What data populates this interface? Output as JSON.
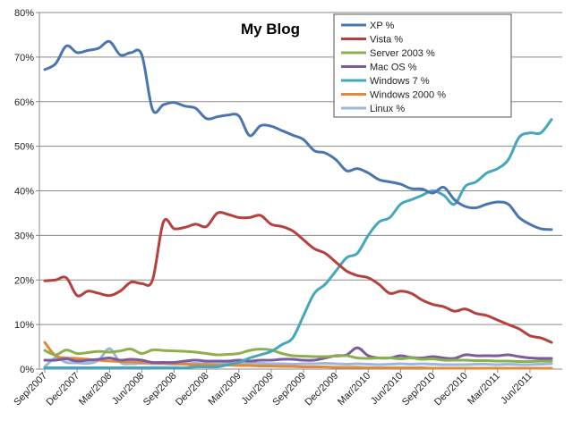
{
  "chart_data": {
    "type": "line",
    "title": "My Blog",
    "xlabel": "",
    "ylabel": "",
    "ylim": [
      0,
      80
    ],
    "y_ticks": [
      "0%",
      "10%",
      "20%",
      "30%",
      "40%",
      "50%",
      "60%",
      "70%",
      "80%"
    ],
    "grid": "horizontal",
    "legend_position": "top-right",
    "x": [
      "Sep/2007",
      "Oct/2007",
      "Nov/2007",
      "Dec/2007",
      "Jan/2008",
      "Feb/2008",
      "Mar/2008",
      "Apr/2008",
      "May/2008",
      "Jun/2008",
      "Jul/2008",
      "Aug/2008",
      "Sep/2008",
      "Oct/2008",
      "Nov/2008",
      "Dec/2008",
      "Jan/2009",
      "Feb/2009",
      "Mar/2009",
      "Apr/2009",
      "May/2009",
      "Jun/2009",
      "Jul/2009",
      "Aug/2009",
      "Sep/2009",
      "Oct/2009",
      "Nov/2009",
      "Dec/2009",
      "Jan/2010",
      "Feb/2010",
      "Mar/2010",
      "Apr/2010",
      "May/2010",
      "Jun/2010",
      "Jul/2010",
      "Aug/2010",
      "Sep/2010",
      "Oct/2010",
      "Nov/2010",
      "Dec/2010",
      "Jan/2011",
      "Feb/2011",
      "Mar/2011",
      "Apr/2011",
      "May/2011",
      "Jun/2011",
      "Jul/2011",
      "Aug/2011"
    ],
    "x_tick_labels": [
      "Sep/2007",
      "Dec/2007",
      "Mar/2008",
      "Jun/2008",
      "Sep/2008",
      "Dec/2008",
      "Mar/2009",
      "Jun/2009",
      "Sep/2009",
      "Dec/2009",
      "Mar/2010",
      "Jun/2010",
      "Sep/2010",
      "Dec/2010",
      "Mar/2011",
      "Jun/2011"
    ],
    "series": [
      {
        "name": "XP %",
        "color": "#4a76b0",
        "values": [
          67.2,
          68.5,
          72.5,
          71,
          71.5,
          72,
          73.5,
          70.5,
          71,
          70.5,
          58.2,
          59.3,
          59.8,
          59,
          58.5,
          56.2,
          56.6,
          57,
          56.8,
          52.4,
          54.6,
          54.5,
          53.5,
          52.5,
          51.5,
          49,
          48.5,
          47,
          44.5,
          45,
          44,
          42.5,
          42,
          41.5,
          40.5,
          40.4,
          39.5,
          40.8,
          38,
          36.5,
          36.2,
          37,
          37.5,
          37,
          34,
          32.5,
          31.5,
          31.3
        ]
      },
      {
        "name": "Vista %",
        "color": "#b5413e",
        "values": [
          19.8,
          20,
          20.5,
          16.5,
          17.5,
          17,
          16.5,
          17.5,
          19.5,
          19.2,
          20,
          33,
          31.5,
          31.8,
          32.5,
          32,
          35,
          34.7,
          34,
          34,
          34.5,
          32.5,
          32,
          31,
          29,
          27,
          26,
          24,
          22,
          21,
          20.5,
          19,
          17,
          17.5,
          17,
          15.5,
          14.5,
          14,
          13,
          13.5,
          12.5,
          12,
          11,
          10,
          9,
          7.5,
          7,
          6
        ]
      },
      {
        "name": "Server 2003 %",
        "color": "#8db04f",
        "values": [
          4.2,
          3.2,
          4.3,
          3.5,
          3.7,
          4,
          3.8,
          4.1,
          4.5,
          3.5,
          4.3,
          4.2,
          4.1,
          4,
          3.8,
          3.5,
          3.2,
          3.3,
          3.5,
          4.2,
          4.5,
          4.3,
          3.5,
          3,
          2.9,
          2.8,
          2.8,
          2.9,
          3,
          2.5,
          2.4,
          2.5,
          2.5,
          2.3,
          2.5,
          2.2,
          2.3,
          2,
          2,
          2,
          1.9,
          1.9,
          1.8,
          1.8,
          1.7,
          1.7,
          1.8,
          1.8
        ]
      },
      {
        "name": "Mac OS %",
        "color": "#7a5b9e",
        "values": [
          2,
          2,
          2.3,
          1.8,
          2,
          2.2,
          2.5,
          2,
          2.2,
          2,
          1.5,
          1.5,
          1.5,
          1.8,
          2,
          1.8,
          1.8,
          1.8,
          2,
          1.8,
          2,
          2,
          2.2,
          2.2,
          2,
          2,
          2.5,
          3,
          3.2,
          4.8,
          3,
          2.5,
          2.5,
          3,
          2.6,
          2.5,
          2.8,
          2.5,
          2.4,
          3.2,
          3,
          3,
          3,
          3.2,
          2.8,
          2.5,
          2.4,
          2.4
        ]
      },
      {
        "name": "Windows 7 %",
        "color": "#45a7bd",
        "values": [
          0.3,
          0.3,
          0.3,
          0.3,
          0.3,
          0.3,
          0.3,
          0.3,
          0.3,
          0.3,
          0.3,
          0.3,
          0.3,
          0.3,
          0.5,
          0.5,
          0.5,
          1,
          1.5,
          2.5,
          3.2,
          4,
          5.5,
          7,
          12,
          17,
          19,
          22,
          25,
          26,
          30,
          33,
          34,
          37,
          38,
          39,
          40,
          39,
          37,
          41,
          42,
          44,
          45,
          47,
          52,
          53,
          53,
          56
        ]
      },
      {
        "name": "Windows 2000 %",
        "color": "#e08a3c",
        "values": [
          6,
          3,
          2.5,
          2.4,
          2.2,
          2,
          1.8,
          1.7,
          1.6,
          1.5,
          1.4,
          1.3,
          1.2,
          1.1,
          1,
          1,
          0.9,
          0.9,
          0.8,
          0.8,
          0.7,
          0.7,
          0.6,
          0.6,
          0.5,
          0.5,
          0.5,
          0.4,
          0.4,
          0.4,
          0.3,
          0.3,
          0.3,
          0.3,
          0.3,
          0.3,
          0.2,
          0.2,
          0.2,
          0.2,
          0.2,
          0.2,
          0.2,
          0.2,
          0.2,
          0.2,
          0.2,
          0.2
        ]
      },
      {
        "name": "Linux %",
        "color": "#9bb7d9",
        "values": [
          0.5,
          2.5,
          1.5,
          1.4,
          1.3,
          2,
          4.6,
          1.5,
          1.2,
          1.3,
          1.2,
          1.2,
          1.1,
          1.2,
          1.3,
          1.2,
          1.2,
          1.3,
          1.3,
          1.4,
          1.3,
          1.2,
          1.2,
          1.1,
          1.2,
          1.2,
          1.3,
          1.2,
          1.1,
          1.2,
          1.1,
          1,
          1.1,
          1.2,
          1.1,
          1.2,
          1.1,
          1,
          1,
          1,
          1.1,
          1.1,
          1,
          1.1,
          1,
          1,
          1.1,
          1.2
        ]
      }
    ]
  }
}
